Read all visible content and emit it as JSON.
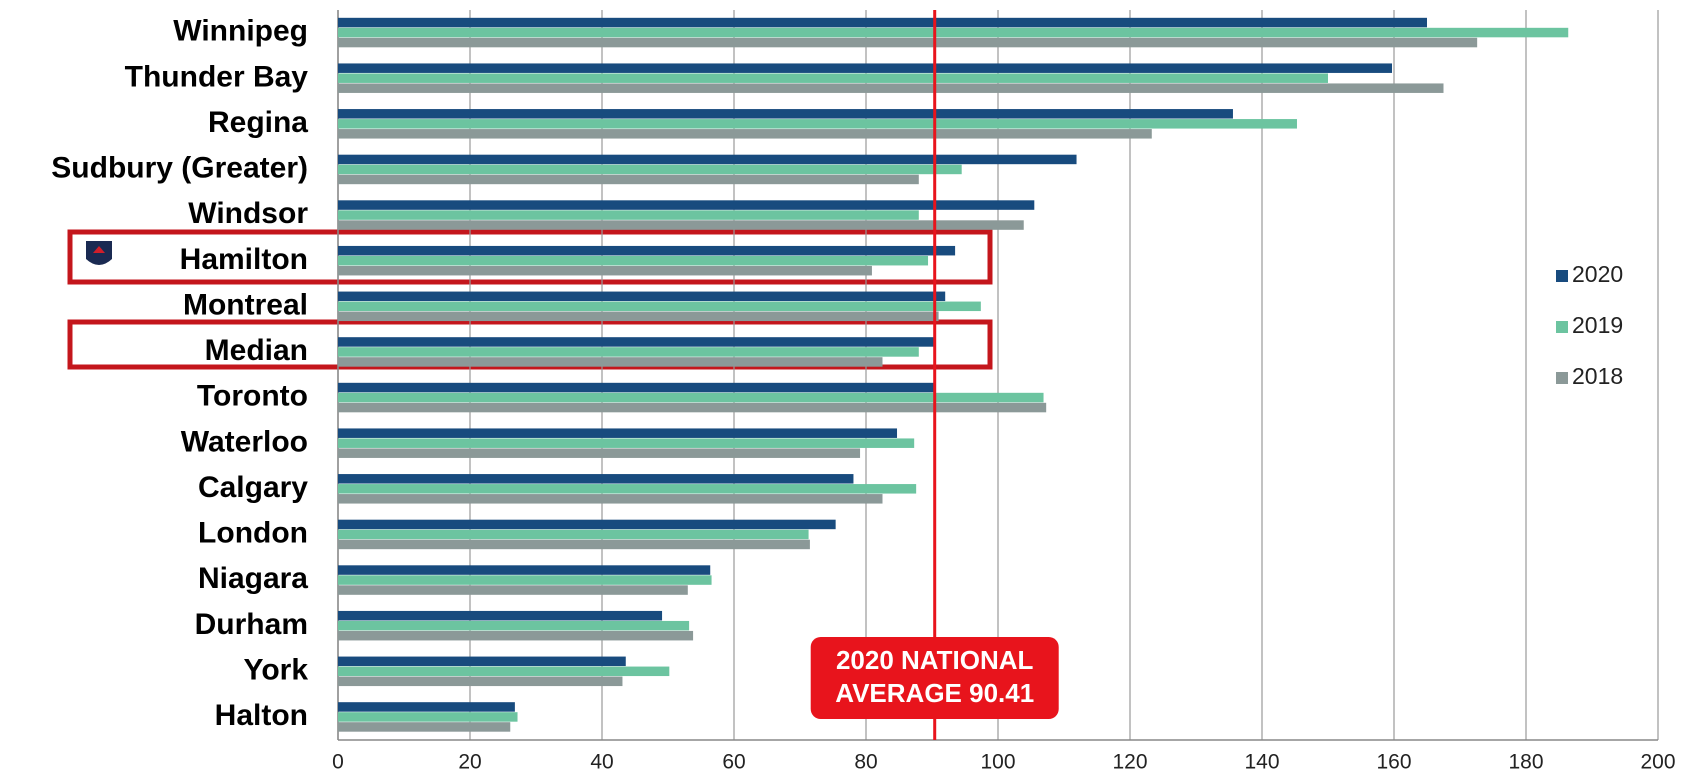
{
  "chart_data": {
    "type": "bar",
    "orientation": "horizontal",
    "categories": [
      "Winnipeg",
      "Thunder Bay",
      "Regina",
      "Sudbury (Greater)",
      "Windsor",
      "Hamilton",
      "Montreal",
      "Median",
      "Toronto",
      "Waterloo",
      "Calgary",
      "London",
      "Niagara",
      "Durham",
      "York",
      "Halton"
    ],
    "series": [
      {
        "name": "2020",
        "color": "#184b7e",
        "values": [
          165,
          159.7,
          135.6,
          111.9,
          105.5,
          93.5,
          92,
          90.4,
          90.4,
          84.7,
          78.1,
          75.4,
          56.4,
          49.1,
          43.6,
          26.8
        ]
      },
      {
        "name": "2019",
        "color": "#6cc4a0",
        "values": [
          186.4,
          150,
          145.3,
          94.5,
          88,
          89.4,
          97.4,
          88,
          106.9,
          87.3,
          87.6,
          71.3,
          56.6,
          53.2,
          50.2,
          27.2
        ]
      },
      {
        "name": "2018",
        "color": "#8b9998",
        "values": [
          172.6,
          167.5,
          123.3,
          88,
          103.9,
          80.9,
          91,
          82.5,
          107.3,
          79.1,
          82.5,
          71.5,
          53,
          53.8,
          43.1,
          26.1
        ]
      }
    ],
    "xlim": [
      0,
      200
    ],
    "xticks": [
      0,
      20,
      40,
      60,
      80,
      100,
      120,
      140,
      160,
      180,
      200
    ],
    "grid": true,
    "legend": "right",
    "annotation": {
      "value": 90.41,
      "color": "#e8141c",
      "lines": [
        "2020 NATIONAL",
        "AVERAGE 90.41"
      ]
    }
  }
}
